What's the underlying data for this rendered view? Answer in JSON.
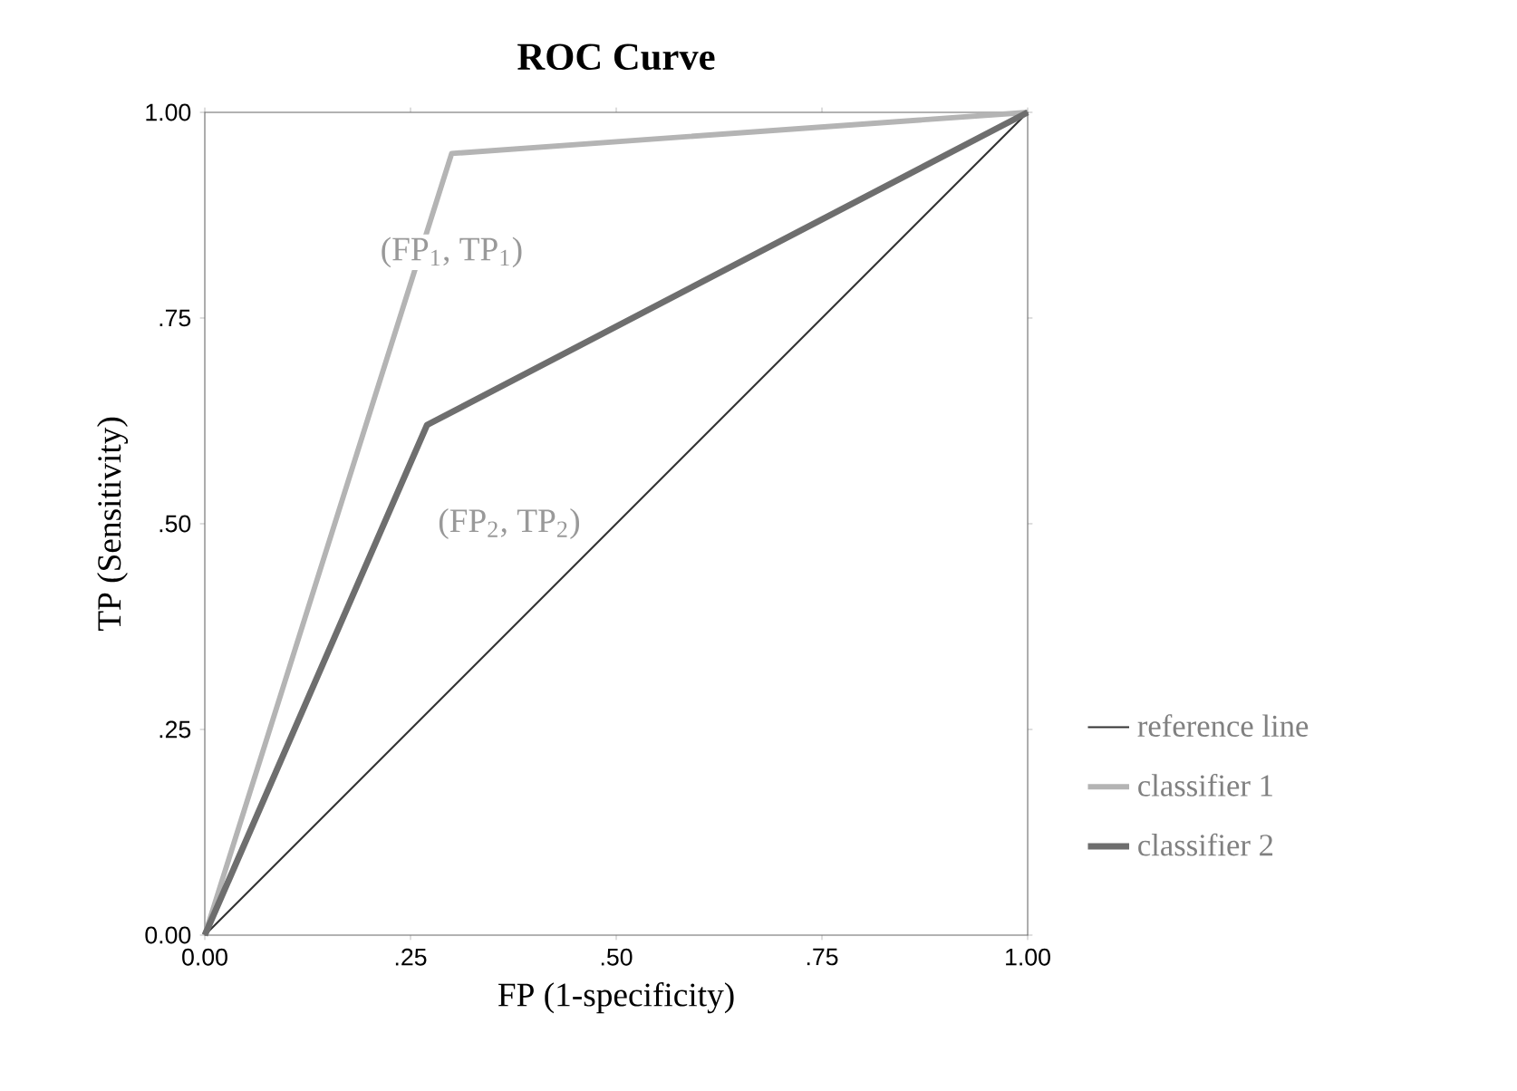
{
  "chart_data": {
    "type": "line",
    "title": "ROC Curve",
    "xlabel": "FP (1-specificity)",
    "ylabel": "TP (Sensitivity)",
    "xlim": [
      0,
      1
    ],
    "ylim": [
      0,
      1
    ],
    "xticks": [
      {
        "value": 0,
        "label": "0.00"
      },
      {
        "value": 0.25,
        "label": ".25"
      },
      {
        "value": 0.5,
        "label": ".50"
      },
      {
        "value": 0.75,
        "label": ".75"
      },
      {
        "value": 1,
        "label": "1.00"
      }
    ],
    "yticks": [
      {
        "value": 0,
        "label": "0.00"
      },
      {
        "value": 0.25,
        "label": ".25"
      },
      {
        "value": 0.5,
        "label": ".50"
      },
      {
        "value": 0.75,
        "label": ".75"
      },
      {
        "value": 1,
        "label": "1.00"
      }
    ],
    "series": [
      {
        "name": "reference line",
        "color": "#333333",
        "x": [
          0,
          1
        ],
        "values": [
          0,
          1
        ]
      },
      {
        "name": "classifier 1",
        "color": "#b4b4b4",
        "x": [
          0,
          0.3,
          1
        ],
        "values": [
          0,
          0.95,
          1
        ]
      },
      {
        "name": "classifier 2",
        "color": "#6e6e6e",
        "x": [
          0,
          0.27,
          1
        ],
        "values": [
          0,
          0.62,
          1
        ]
      }
    ],
    "annotations": [
      {
        "text": "(FP$_{1}$, TP$_{1}$)",
        "x": 0.3,
        "y": 0.95
      },
      {
        "text": "(FP$_{2}$, TP$_{2}$)",
        "x": 0.27,
        "y": 0.62
      }
    ],
    "legend": "right",
    "grid": false
  }
}
